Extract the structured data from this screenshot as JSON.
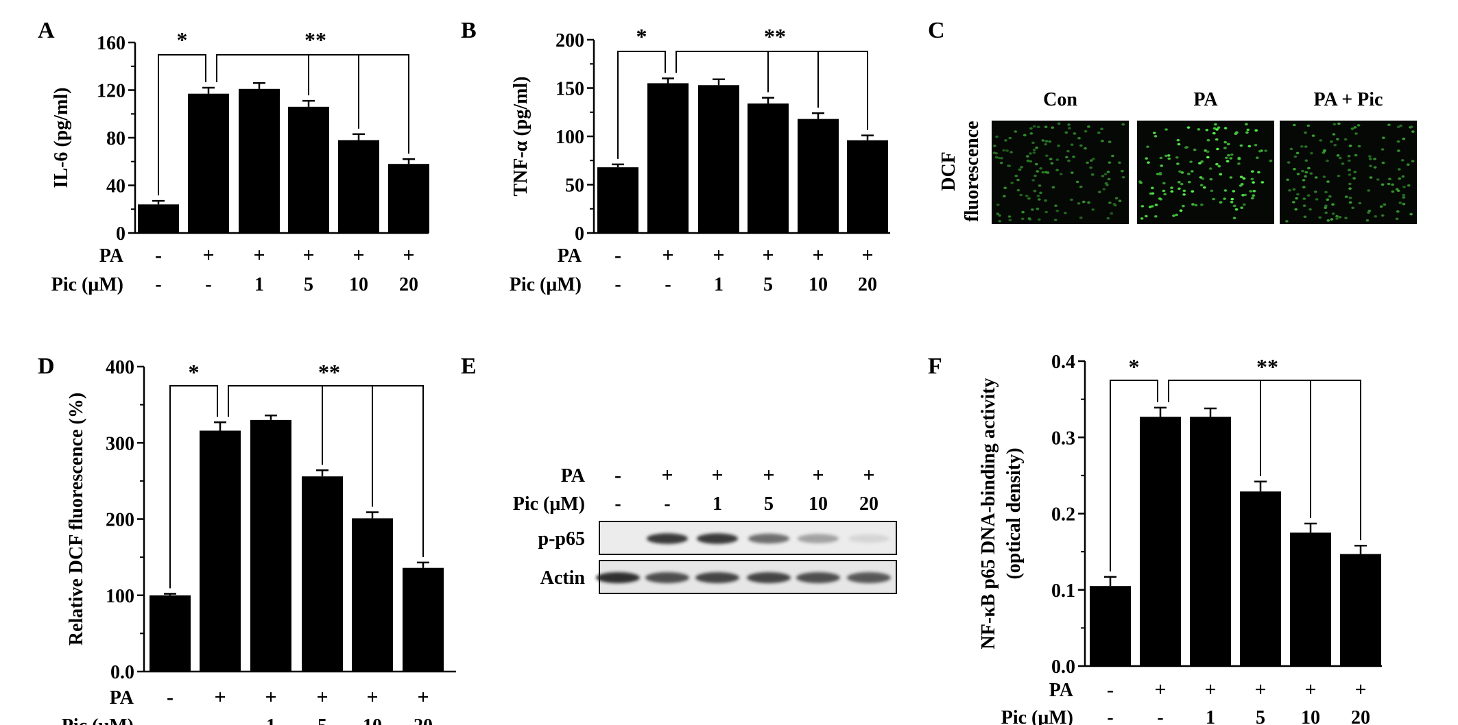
{
  "panel_labels": [
    "A",
    "B",
    "C",
    "D",
    "E",
    "F"
  ],
  "treatment": {
    "pa_label": "PA",
    "pic_label": "Pic (μM)",
    "pa": [
      "-",
      "+",
      "+",
      "+",
      "+",
      "+"
    ],
    "pic": [
      "-",
      "-",
      "1",
      "5",
      "10",
      "20"
    ]
  },
  "significance": {
    "single": "*",
    "double": "**"
  },
  "chart_data": [
    {
      "panel": "A",
      "type": "bar",
      "ylabel": "IL-6 (pg/ml)",
      "ylim": [
        0,
        160
      ],
      "yticks": [
        "0",
        "40",
        "80",
        "120",
        "160"
      ],
      "values": [
        24,
        117,
        121,
        106,
        78,
        58
      ],
      "errors": [
        3,
        5,
        5,
        5,
        5,
        4
      ]
    },
    {
      "panel": "B",
      "type": "bar",
      "ylabel": "TNF-α (pg/ml)",
      "ylim": [
        0,
        200
      ],
      "yticks": [
        "0",
        "50",
        "100",
        "150",
        "200"
      ],
      "values": [
        68,
        155,
        153,
        134,
        118,
        96
      ],
      "errors": [
        3,
        5,
        6,
        6,
        6,
        5
      ]
    },
    {
      "panel": "D",
      "type": "bar",
      "ylabel": "Relative DCF fluorescence  (%)",
      "ylim": [
        0,
        400
      ],
      "yticks": [
        "0.0",
        "100",
        "200",
        "300",
        "400"
      ],
      "values": [
        100,
        316,
        330,
        256,
        201,
        136
      ],
      "errors": [
        2,
        11,
        6,
        8,
        8,
        7
      ]
    },
    {
      "panel": "F",
      "type": "bar",
      "ylabel": "NF-κB p65 DNA-binding activity",
      "ylabel2": "(optical density)",
      "ylim": [
        0,
        0.4
      ],
      "yticks": [
        "0.0",
        "0.1",
        "0.2",
        "0.3",
        "0.4"
      ],
      "values": [
        0.105,
        0.327,
        0.327,
        0.229,
        0.175,
        0.147
      ],
      "errors": [
        0.012,
        0.012,
        0.011,
        0.013,
        0.012,
        0.011
      ]
    }
  ],
  "panel_c": {
    "row_label_1": "DCF",
    "row_label_2": "fluorescence",
    "columns": [
      "Con",
      "PA",
      "PA + Pic"
    ],
    "green_density": [
      0.45,
      1.0,
      0.55
    ]
  },
  "panel_e": {
    "rows": [
      "p-p65",
      "Actin"
    ],
    "p65_intensity": [
      0.0,
      0.85,
      0.85,
      0.6,
      0.35,
      0.1
    ],
    "actin_intensity": [
      0.9,
      0.75,
      0.8,
      0.8,
      0.75,
      0.7
    ]
  }
}
